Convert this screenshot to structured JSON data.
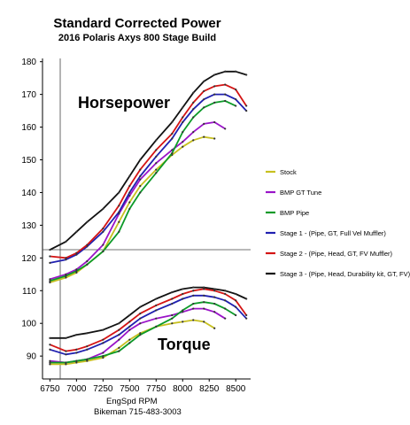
{
  "chart_data": {
    "type": "line",
    "title": "Standard Corrected Power",
    "subtitle": "2016 Polaris Axys 800 Stage Build",
    "xlabel": "EngSpd  RPM",
    "footer": "Bikeman 715-483-3003",
    "ylabel": "",
    "xlim": [
      6680,
      8640
    ],
    "ylim": [
      83,
      181
    ],
    "x_ticks": [
      6750,
      7000,
      7250,
      7500,
      7750,
      8000,
      8250,
      8500
    ],
    "y_ticks": [
      90,
      100,
      110,
      120,
      130,
      140,
      150,
      160,
      170,
      180
    ],
    "grid": false,
    "legend_position": "right",
    "annotations": [
      "Horsepower",
      "Torque"
    ],
    "colors": {
      "stock": "#c7c020",
      "bmp_gt_tune": "#9a14c8",
      "bmp_pipe": "#0c9a28",
      "stage1": "#2020b0",
      "stage2": "#d41414",
      "stage3": "#111111"
    },
    "horsepower_series": [
      {
        "name": "Stock",
        "x": [
          6750,
          6900,
          7000,
          7100,
          7250,
          7400,
          7500,
          7600,
          7750,
          7900,
          8000,
          8100,
          8200,
          8300
        ],
        "values": [
          112.5,
          114,
          115.5,
          118,
          122,
          131,
          137,
          142,
          147,
          151.5,
          154,
          156,
          157,
          156.5
        ]
      },
      {
        "name": "BMP GT Tune",
        "x": [
          6750,
          6900,
          7000,
          7100,
          7250,
          7400,
          7500,
          7600,
          7750,
          7900,
          8000,
          8100,
          8200,
          8300,
          8400
        ],
        "values": [
          113.5,
          115,
          116.5,
          119,
          124,
          133.5,
          139,
          144,
          149,
          153,
          155.5,
          158.5,
          161,
          161.5,
          159.5
        ]
      },
      {
        "name": "BMP Pipe",
        "x": [
          6750,
          6900,
          7000,
          7100,
          7250,
          7400,
          7500,
          7600,
          7750,
          7900,
          8000,
          8100,
          8200,
          8300,
          8400,
          8500
        ],
        "values": [
          113,
          114.5,
          116,
          118,
          122,
          128,
          135,
          140,
          146,
          152,
          158.5,
          163,
          166,
          167.5,
          168,
          166.5
        ]
      },
      {
        "name": "Stage 1 - (Pipe, GT, Full Vel Muffler)",
        "x": [
          6750,
          6900,
          7000,
          7100,
          7250,
          7400,
          7500,
          7600,
          7750,
          7900,
          8000,
          8100,
          8200,
          8300,
          8400,
          8500,
          8600
        ],
        "values": [
          118.5,
          119.5,
          121,
          123.5,
          128,
          134,
          140,
          145,
          151,
          156.5,
          161.5,
          165.5,
          168.5,
          170,
          170,
          168.5,
          165
        ]
      },
      {
        "name": "Stage 2 - (Pipe, Head, GT, FV Muffler)",
        "x": [
          6750,
          6900,
          7000,
          7100,
          7250,
          7400,
          7500,
          7600,
          7750,
          7900,
          8000,
          8100,
          8200,
          8300,
          8400,
          8500,
          8600
        ],
        "values": [
          120.5,
          120,
          121.5,
          124,
          129,
          136,
          142,
          147,
          153,
          158,
          163,
          167.5,
          171,
          172.5,
          173,
          171.5,
          166.5
        ]
      },
      {
        "name": "Stage 3 - (Pipe, Head, Durability kit, GT, FV)",
        "x": [
          6750,
          6900,
          7000,
          7100,
          7250,
          7400,
          7500,
          7600,
          7750,
          7900,
          8000,
          8100,
          8200,
          8300,
          8400,
          8500,
          8600
        ],
        "values": [
          122.5,
          125,
          128,
          131,
          135,
          140,
          145,
          150,
          156,
          161.5,
          166,
          170.5,
          174,
          176,
          177,
          177,
          176
        ]
      }
    ],
    "torque_series": [
      {
        "name": "Stock",
        "x": [
          6750,
          6900,
          7000,
          7100,
          7250,
          7400,
          7500,
          7600,
          7750,
          7900,
          8000,
          8100,
          8200,
          8300
        ],
        "values": [
          87.5,
          87.5,
          88,
          88.5,
          89.5,
          92.5,
          95,
          97,
          99,
          100,
          100.5,
          101,
          100.5,
          98.5
        ]
      },
      {
        "name": "BMP GT Tune",
        "x": [
          6750,
          6900,
          7000,
          7100,
          7250,
          7400,
          7500,
          7600,
          7750,
          7900,
          8000,
          8100,
          8200,
          8300,
          8400
        ],
        "values": [
          88.5,
          88,
          88.5,
          89,
          91,
          95,
          98,
          100,
          101.5,
          102.5,
          103.5,
          104.5,
          104.5,
          103.5,
          101.5
        ]
      },
      {
        "name": "BMP Pipe",
        "x": [
          6750,
          6900,
          7000,
          7100,
          7250,
          7400,
          7500,
          7600,
          7750,
          7900,
          8000,
          8100,
          8200,
          8300,
          8400,
          8500
        ],
        "values": [
          88,
          88,
          88.5,
          89,
          90,
          91.5,
          94,
          96.5,
          99,
          101.5,
          104,
          106,
          106.5,
          106,
          104.5,
          102.5
        ]
      },
      {
        "name": "Stage 1 - (Pipe, GT, Full Vel Muffler)",
        "x": [
          6750,
          6900,
          7000,
          7100,
          7250,
          7400,
          7500,
          7600,
          7750,
          7900,
          8000,
          8100,
          8200,
          8300,
          8400,
          8500,
          8600
        ],
        "values": [
          92,
          90.5,
          91,
          92,
          94,
          96.5,
          99,
          101.5,
          104,
          106,
          107.5,
          108.5,
          108.5,
          108,
          107,
          105,
          101.5
        ]
      },
      {
        "name": "Stage 2 - (Pipe, Head, GT, FV Muffler)",
        "x": [
          6750,
          6900,
          7000,
          7100,
          7250,
          7400,
          7500,
          7600,
          7750,
          7900,
          8000,
          8100,
          8200,
          8300,
          8400,
          8500,
          8600
        ],
        "values": [
          93.5,
          91.5,
          92,
          93,
          95,
          98,
          100.5,
          103,
          105.5,
          107.5,
          109,
          110,
          110.5,
          110,
          109,
          107,
          102.5
        ]
      },
      {
        "name": "Stage 3 - (Pipe, Head, Durability kit, GT, FV)",
        "x": [
          6750,
          6900,
          7000,
          7100,
          7250,
          7400,
          7500,
          7600,
          7750,
          7900,
          8000,
          8100,
          8200,
          8300,
          8400,
          8500,
          8600
        ],
        "values": [
          95.5,
          95.5,
          96.5,
          97,
          98,
          100,
          102.5,
          105,
          107.5,
          109.5,
          110.5,
          111,
          111,
          110.5,
          110,
          109,
          107.5
        ]
      }
    ]
  },
  "legend": [
    {
      "key": "stock",
      "label": "Stock"
    },
    {
      "key": "bmp_gt_tune",
      "label": "BMP GT Tune"
    },
    {
      "key": "bmp_pipe",
      "label": "BMP Pipe"
    },
    {
      "key": "stage1",
      "label": "Stage 1 - (Pipe, GT, Full Vel Muffler)"
    },
    {
      "key": "stage2",
      "label": "Stage 2 - (Pipe, Head, GT, FV Muffler)"
    },
    {
      "key": "stage3",
      "label": "Stage 3 - (Pipe, Head, Durability kit, GT, FV)"
    }
  ]
}
